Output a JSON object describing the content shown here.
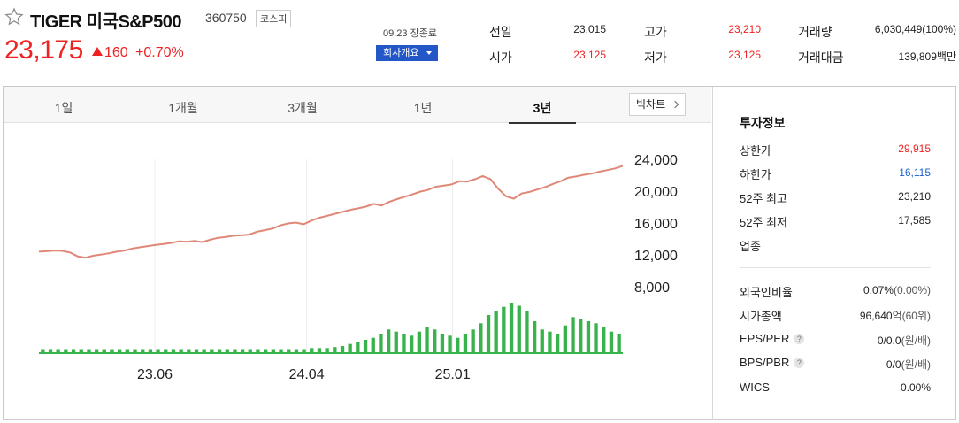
{
  "header": {
    "stock_name": "TIGER 미국S&P500",
    "stock_code": "360750",
    "market": "코스피",
    "price": "23,175",
    "change": "160",
    "change_rate": "+0.70%",
    "date_status": "09.23 장종료",
    "company_button": "회사개요",
    "up_color": "#e22222"
  },
  "quote": {
    "prev_close_label": "전일",
    "prev_close": "23,015",
    "open_label": "시가",
    "open": "23,125",
    "high_label": "고가",
    "high": "23,210",
    "low_label": "저가",
    "low": "23,125",
    "volume_label": "거래량",
    "volume": "6,030,449(100%)",
    "amount_label": "거래대금",
    "amount": "139,809백만"
  },
  "tabs": [
    {
      "label": "1일"
    },
    {
      "label": "1개월"
    },
    {
      "label": "3개월"
    },
    {
      "label": "1년"
    },
    {
      "label": "3년",
      "active": true
    }
  ],
  "candle_button": "빅차트",
  "chart_data": {
    "type": "line",
    "title": "",
    "xlabel": "",
    "ylabel": "",
    "x_ticks": [
      "23.06",
      "24.04",
      "25.01"
    ],
    "y_ticks": [
      24000,
      20000,
      16000,
      12000,
      8000
    ],
    "y_tick_labels": [
      "24,000",
      "20,000",
      "16,000",
      "12,000",
      "8,000"
    ],
    "ylim": [
      8000,
      24000
    ],
    "line_color": "#e08878",
    "volume_color": "#38b24a",
    "grid_vertical": true,
    "series": [
      {
        "values": [
          12400,
          12450,
          12550,
          12500,
          12300,
          11800,
          11650,
          11900,
          12050,
          12200,
          12400,
          12550,
          12800,
          12950,
          13100,
          13250,
          13350,
          13500,
          13700,
          13650,
          13750,
          13600,
          13900,
          14150,
          14250,
          14400,
          14450,
          14550,
          14900,
          15100,
          15300,
          15700,
          15950,
          16050,
          15850,
          16300,
          16650,
          16900,
          17150,
          17400,
          17650,
          17850,
          18050,
          18400,
          18200,
          18650,
          19000,
          19300,
          19600,
          19950,
          20150,
          20550,
          20700,
          20850,
          21250,
          21200,
          21500,
          21900,
          21500,
          20300,
          19350,
          19050,
          19700,
          19900,
          20200,
          20500,
          20900,
          21250,
          21700,
          21850,
          22050,
          22200,
          22450,
          22650,
          22850,
          23175
        ]
      }
    ],
    "volume": [
      3,
      3,
      3,
      3,
      3,
      3,
      3,
      3,
      3,
      3,
      3,
      3,
      3,
      3,
      3,
      3,
      3,
      3,
      3,
      3,
      3,
      3,
      3,
      3,
      3,
      3,
      3,
      3,
      3,
      3,
      3,
      3,
      3,
      3,
      3,
      4,
      4,
      4,
      5,
      6,
      8,
      10,
      12,
      14,
      18,
      22,
      20,
      18,
      16,
      20,
      24,
      22,
      18,
      16,
      14,
      18,
      22,
      28,
      36,
      40,
      44,
      48,
      45,
      40,
      30,
      22,
      20,
      18,
      26,
      34,
      32,
      30,
      28,
      24,
      20,
      18
    ]
  },
  "invest": {
    "title": "투자정보",
    "rows": [
      {
        "label": "상한가",
        "value": "29,915",
        "tone": "up"
      },
      {
        "label": "하한가",
        "value": "16,115",
        "tone": "down"
      },
      {
        "label": "52주 최고",
        "value": "23,210",
        "tone": ""
      },
      {
        "label": "52주 최저",
        "value": "17,585",
        "tone": ""
      },
      {
        "label": "업종",
        "value": "",
        "tone": ""
      }
    ],
    "rows2": [
      {
        "label": "외국인비율",
        "value": "0.07%",
        "unit": "(0.00%)",
        "help": false
      },
      {
        "label": "시가총액",
        "value": "96,640",
        "unit": "억(60위)",
        "help": false
      },
      {
        "label": "EPS/PER",
        "value": "0/0.0",
        "unit": "(원/배)",
        "help": true
      },
      {
        "label": "BPS/PBR",
        "value": "0/0",
        "unit": "(원/배)",
        "help": true
      },
      {
        "label": "WICS",
        "value": "0.00%",
        "unit": "",
        "help": false
      }
    ]
  }
}
